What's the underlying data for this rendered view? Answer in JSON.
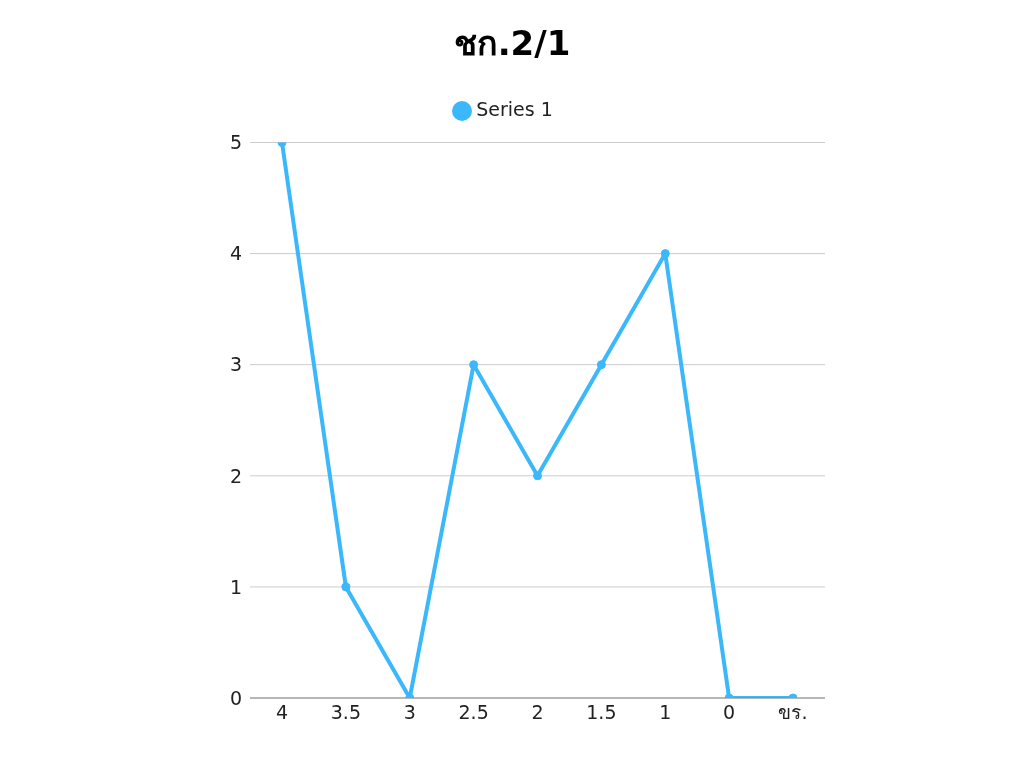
{
  "chart_data": {
    "type": "line",
    "title": "ชก.2/1",
    "categories": [
      "4",
      "3.5",
      "3",
      "2.5",
      "2",
      "1.5",
      "1",
      "0",
      "ขร."
    ],
    "series": [
      {
        "name": "Series 1",
        "color": "#3bb8fb",
        "values": [
          5,
          1,
          0,
          3,
          2,
          3,
          4,
          0,
          0
        ]
      }
    ],
    "ylim": [
      0,
      5
    ],
    "yticks": [
      0,
      1,
      2,
      3,
      4,
      5
    ],
    "grid": "y",
    "legend": "top",
    "marker": "circle",
    "line_style": "solid"
  }
}
